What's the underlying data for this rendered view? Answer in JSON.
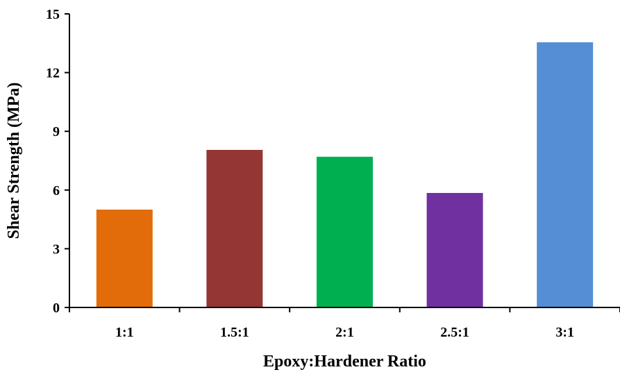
{
  "chart_data": {
    "type": "bar",
    "title": "",
    "xlabel": "Epoxy:Hardener Ratio",
    "ylabel": "Shear Strength (MPa)",
    "categories": [
      "1:1",
      "1.5:1",
      "2:1",
      "2.5:1",
      "3:1"
    ],
    "values": [
      5.0,
      8.05,
      7.7,
      5.85,
      13.55
    ],
    "colors": [
      "#E36C0A",
      "#943634",
      "#00B050",
      "#7030A0",
      "#558ED5"
    ],
    "ylim": [
      0,
      15
    ],
    "yticks": [
      "0",
      "3",
      "6",
      "9",
      "12",
      "15"
    ],
    "grid": false,
    "legend": "none"
  }
}
